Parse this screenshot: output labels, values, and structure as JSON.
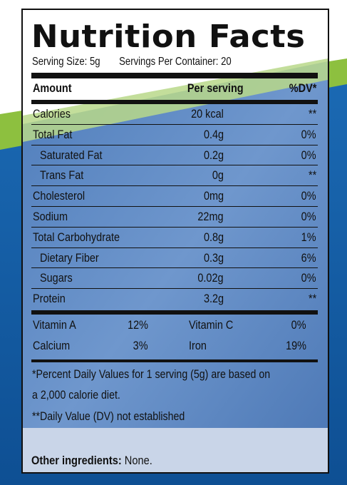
{
  "colors": {
    "blue": "#1760a8",
    "dark_blue": "#0d4d91",
    "green": "#8dc03f",
    "panel_blue": "#5d86c1",
    "panel_light": "#c9d5e8"
  },
  "label": {
    "title": "Nutrition Facts",
    "serving_size": "Serving Size: 5g",
    "servings_per_container": "Servings Per Container: 20",
    "header": {
      "amount": "Amount",
      "per_serving": "Per serving",
      "dv": "%DV*"
    },
    "rows": [
      {
        "name": "Calories",
        "amount": "20 kcal",
        "dv": "**",
        "indent": false
      },
      {
        "name": "Total Fat",
        "amount": "0.4g",
        "dv": "0%",
        "indent": false
      },
      {
        "name": "Saturated Fat",
        "amount": "0.2g",
        "dv": "0%",
        "indent": true
      },
      {
        "name": "Trans Fat",
        "amount": "0g",
        "dv": "**",
        "indent": true
      },
      {
        "name": "Cholesterol",
        "amount": "0mg",
        "dv": "0%",
        "indent": false
      },
      {
        "name": "Sodium",
        "amount": "22mg",
        "dv": "0%",
        "indent": false
      },
      {
        "name": "Total Carbohydrate",
        "amount": "0.8g",
        "dv": "1%",
        "indent": false
      },
      {
        "name": "Dietary Fiber",
        "amount": "0.3g",
        "dv": "6%",
        "indent": true
      },
      {
        "name": "Sugars",
        "amount": "0.02g",
        "dv": "0%",
        "indent": true
      },
      {
        "name": "Protein",
        "amount": "3.2g",
        "dv": "**",
        "indent": false
      }
    ],
    "vitamins": [
      {
        "left_name": "Vitamin A",
        "left_value": "12%",
        "right_name": "Vitamin C",
        "right_value": "0%"
      },
      {
        "left_name": "Calcium",
        "left_value": "3%",
        "right_name": "Iron",
        "right_value": "19%"
      }
    ],
    "footnote_line1": "*Percent Daily Values for 1 serving (5g) are based on",
    "footnote_line2": "a 2,000 calorie diet.",
    "footnote_line3": "**Daily Value (DV) not established",
    "ingredients_label": "Other ingredients:",
    "ingredients_value": "None."
  }
}
